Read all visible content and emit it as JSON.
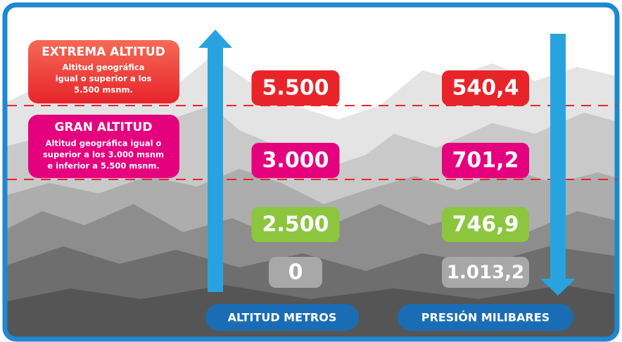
{
  "zones": [
    {
      "title": "EXTREMA ALTITUD",
      "description": [
        "Altitud geográfica",
        "igual o superior a los",
        "5.500 msnm."
      ]
    },
    {
      "title": "GRAN ALTITUD",
      "description": [
        "Altitud geográfica igual o",
        "superior a los 3.000 msnm",
        "e inferior a 5.500 msnm."
      ]
    }
  ],
  "rows": [
    {
      "altitude": "5.500",
      "pressure": "540,4"
    },
    {
      "altitude": "3.000",
      "pressure": "701,2"
    },
    {
      "altitude": "2.500",
      "pressure": "746,9"
    },
    {
      "altitude": "0",
      "pressure": "1.013,2"
    }
  ],
  "axes": {
    "altitude": "ALTITUD METROS",
    "pressure": "PRESIÓN MILIBARES"
  }
}
